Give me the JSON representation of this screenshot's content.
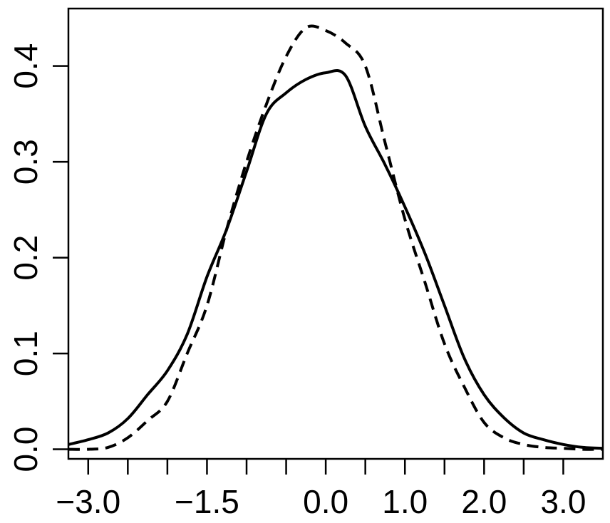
{
  "chart_data": {
    "type": "line",
    "title": "",
    "xlabel": "",
    "ylabel": "",
    "xlim": [
      -3.25,
      3.5
    ],
    "ylim": [
      -0.01,
      0.46
    ],
    "x_ticks": [
      -3.0,
      -2.5,
      -2.0,
      -1.5,
      -1.0,
      -0.5,
      0.0,
      0.5,
      1.0,
      1.5,
      2.0,
      2.5,
      3.0
    ],
    "x_tick_labels": [
      {
        "value": -3.0,
        "label": "−3.0"
      },
      {
        "value": -1.5,
        "label": "−1.5"
      },
      {
        "value": 0.0,
        "label": "0.0"
      },
      {
        "value": 1.0,
        "label": "1.0"
      },
      {
        "value": 2.0,
        "label": "2.0"
      },
      {
        "value": 3.0,
        "label": "3.0"
      }
    ],
    "y_ticks": [
      {
        "value": 0.0,
        "label": "0.0"
      },
      {
        "value": 0.1,
        "label": "0.1"
      },
      {
        "value": 0.2,
        "label": "0.2"
      },
      {
        "value": 0.3,
        "label": "0.3"
      },
      {
        "value": 0.4,
        "label": "0.4"
      }
    ],
    "grid": false,
    "legend": "none",
    "series": [
      {
        "style": "solid",
        "color": "#000000",
        "x": [
          -3.25,
          -3.0,
          -2.75,
          -2.5,
          -2.25,
          -2.0,
          -1.75,
          -1.5,
          -1.25,
          -1.0,
          -0.75,
          -0.5,
          -0.25,
          0.0,
          0.25,
          0.5,
          0.75,
          1.0,
          1.25,
          1.5,
          1.75,
          2.0,
          2.25,
          2.5,
          2.75,
          3.0,
          3.25,
          3.5
        ],
        "y": [
          0.005,
          0.01,
          0.017,
          0.032,
          0.057,
          0.082,
          0.12,
          0.18,
          0.23,
          0.29,
          0.35,
          0.372,
          0.386,
          0.393,
          0.39,
          0.337,
          0.297,
          0.253,
          0.205,
          0.15,
          0.095,
          0.057,
          0.033,
          0.017,
          0.01,
          0.005,
          0.002,
          0.001
        ]
      },
      {
        "style": "dashed",
        "color": "#000000",
        "x": [
          -3.25,
          -3.0,
          -2.75,
          -2.5,
          -2.25,
          -2.0,
          -1.75,
          -1.5,
          -1.25,
          -1.0,
          -0.75,
          -0.5,
          -0.25,
          0.0,
          0.25,
          0.5,
          0.75,
          1.0,
          1.25,
          1.5,
          1.75,
          2.0,
          2.25,
          2.5,
          2.75,
          3.0,
          3.25,
          3.5
        ],
        "y": [
          0.0,
          0.0,
          0.002,
          0.012,
          0.03,
          0.05,
          0.1,
          0.15,
          0.23,
          0.3,
          0.36,
          0.41,
          0.44,
          0.437,
          0.424,
          0.4,
          0.32,
          0.24,
          0.175,
          0.11,
          0.065,
          0.028,
          0.012,
          0.005,
          0.002,
          0.001,
          0.0,
          0.0
        ]
      }
    ]
  }
}
